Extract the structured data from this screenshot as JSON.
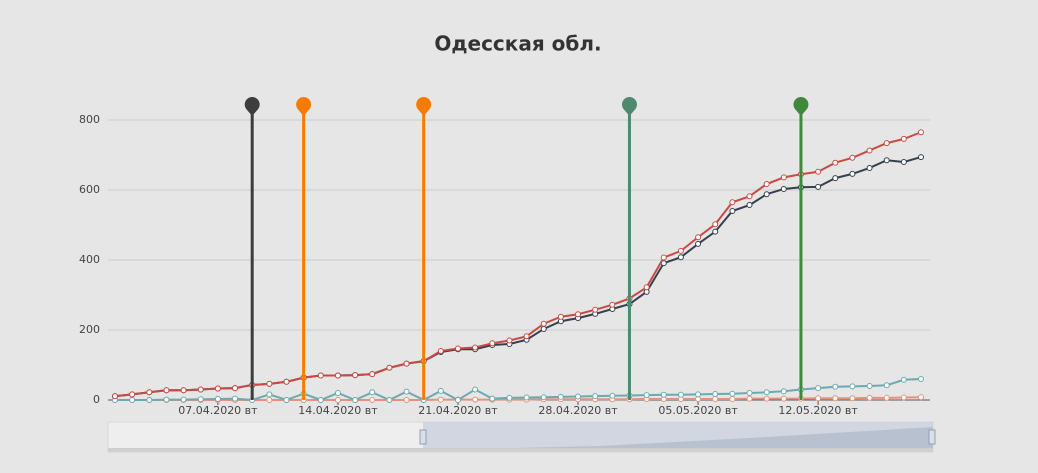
{
  "chart_data": {
    "type": "line",
    "title": "Одесская обл.",
    "categories": [
      null,
      null,
      null,
      null,
      null,
      null,
      "07.04.2020 вт",
      null,
      null,
      null,
      null,
      null,
      null,
      "14.04.2020 вт",
      null,
      null,
      null,
      null,
      null,
      null,
      "21.04.2020 вт",
      null,
      null,
      null,
      null,
      null,
      null,
      "28.04.2020 вт",
      null,
      null,
      null,
      null,
      null,
      null,
      "05.05.2020 вт",
      null,
      null,
      null,
      null,
      null,
      null,
      "12.05.2020 вт",
      null,
      null,
      null,
      null,
      null,
      null
    ],
    "series": [
      {
        "color": "#c94a42",
        "values": [
          11,
          16,
          22,
          28,
          28,
          30,
          33,
          34,
          43,
          46,
          52,
          64,
          70,
          70,
          71,
          74,
          92,
          104,
          111,
          140,
          147,
          150,
          162,
          170,
          182,
          218,
          238,
          245,
          258,
          272,
          290,
          322,
          407,
          426,
          465,
          502,
          565,
          582,
          617,
          636,
          645,
          652,
          678,
          692,
          713,
          734,
          746,
          765
        ]
      },
      {
        "color": "#34404d",
        "values": [
          11,
          16,
          22,
          28,
          28,
          30,
          33,
          34,
          43,
          46,
          52,
          64,
          70,
          70,
          71,
          74,
          92,
          104,
          111,
          137,
          145,
          145,
          157,
          160,
          172,
          203,
          225,
          234,
          246,
          260,
          274,
          309,
          391,
          408,
          446,
          481,
          540,
          557,
          588,
          603,
          608,
          609,
          634,
          646,
          663,
          685,
          680,
          694
        ]
      },
      {
        "color": "#6aaab0",
        "values": [
          0,
          0,
          0,
          1,
          1,
          2,
          3,
          4,
          0,
          16,
          0,
          18,
          0,
          20,
          0,
          22,
          0,
          24,
          0,
          26,
          0,
          30,
          4,
          6,
          7,
          8,
          9,
          10,
          11,
          12,
          13,
          14,
          15,
          15,
          16,
          17,
          18,
          20,
          22,
          25,
          30,
          34,
          38,
          39,
          40,
          42,
          58,
          60
        ]
      },
      {
        "color": "#e8907a",
        "values": [
          0,
          0,
          0,
          0,
          0,
          0,
          0,
          0,
          0,
          0,
          0,
          0,
          0,
          0,
          0,
          0,
          0,
          0,
          0,
          1,
          1,
          1,
          1,
          1,
          1,
          2,
          2,
          2,
          2,
          2,
          2,
          3,
          3,
          3,
          3,
          3,
          3,
          4,
          4,
          4,
          4,
          5,
          5,
          5,
          6,
          6,
          7,
          8
        ]
      }
    ],
    "markers": [
      {
        "x_index": 8,
        "color": "#3d3d3d"
      },
      {
        "x_index": 11,
        "color": "#f57c00"
      },
      {
        "x_index": 18,
        "color": "#f57c00"
      },
      {
        "x_index": 30,
        "color": "#4e8a6e"
      },
      {
        "x_index": 40,
        "color": "#3f8a3a"
      }
    ],
    "ylim": [
      0,
      800
    ],
    "yticks": [
      0,
      200,
      400,
      600,
      800
    ],
    "grid": true
  }
}
